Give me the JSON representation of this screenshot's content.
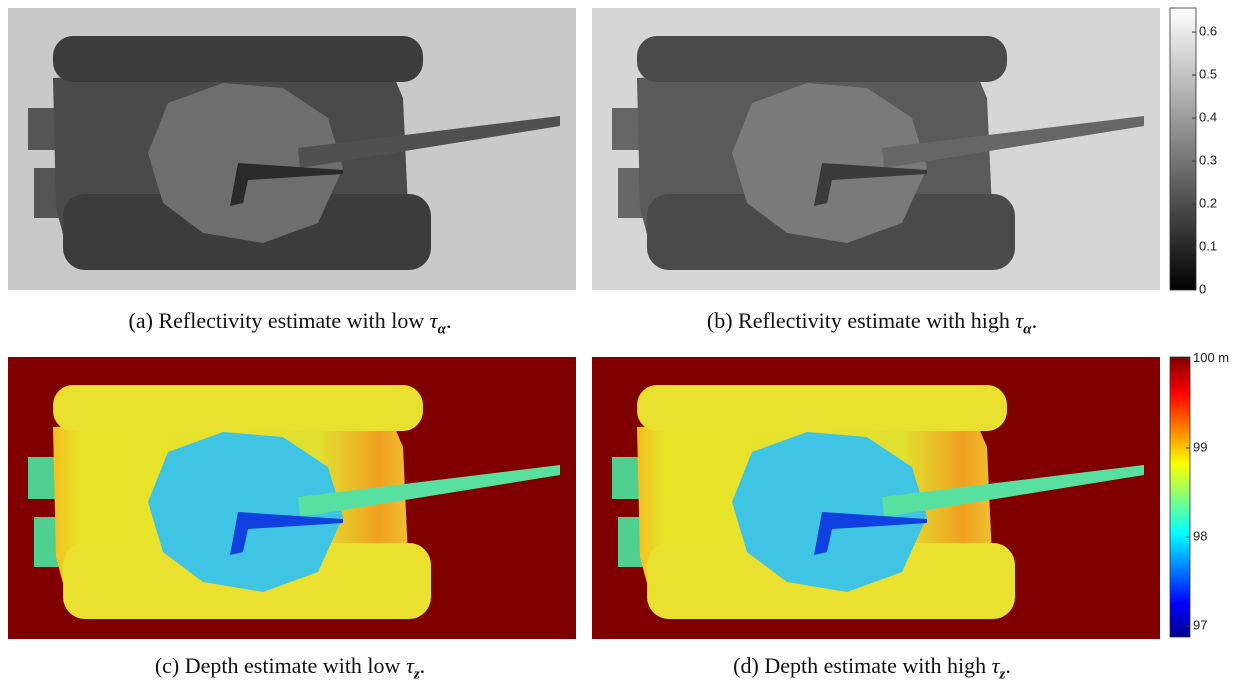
{
  "figure": {
    "panels": [
      {
        "caption": {
          "label": "(a)",
          "text": "Reflectivity estimate with low",
          "math": "τ",
          "sub": "α",
          "end": "."
        }
      },
      {
        "caption": {
          "label": "(b)",
          "text": "Reflectivity estimate with high",
          "math": "τ",
          "sub": "α",
          "end": "."
        }
      },
      {
        "caption": {
          "label": "(c)",
          "text": "Depth estimate with low",
          "math": "τ",
          "sub": "z",
          "end": "."
        }
      },
      {
        "caption": {
          "label": "(d)",
          "text": "Depth estimate with high",
          "math": "τ",
          "sub": "z",
          "end": "."
        }
      }
    ],
    "colorbars": [
      {
        "colormap": "gray",
        "lim": [
          0,
          0.656
        ],
        "ticks": [
          0,
          0.1,
          0.2,
          0.3,
          0.4,
          0.5,
          0.6
        ]
      },
      {
        "colormap": "jet",
        "lim": [
          96.88,
          100.02
        ],
        "ticks": [
          97,
          98,
          99,
          {
            "value": 100,
            "label": "100 m"
          }
        ]
      }
    ]
  }
}
